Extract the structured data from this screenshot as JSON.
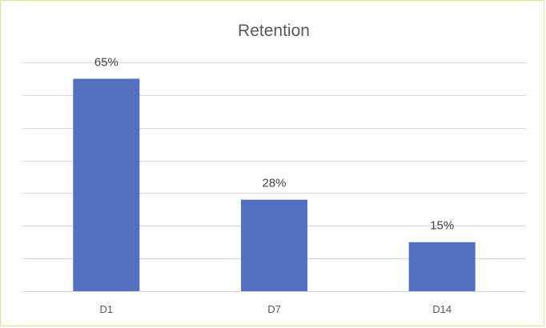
{
  "chart_data": {
    "type": "bar",
    "title": "Retention",
    "categories": [
      "D1",
      "D7",
      "D14"
    ],
    "values": [
      65,
      28,
      15
    ],
    "data_labels": [
      "65%",
      "28%",
      "15%"
    ],
    "unit": "%",
    "ylim": [
      0,
      70
    ],
    "y_tick_step": 10,
    "y_tick_labels_visible": false,
    "grid": true,
    "legend": "none",
    "bar_color": "#5470c1",
    "grid_color": "#d9d9d9"
  }
}
